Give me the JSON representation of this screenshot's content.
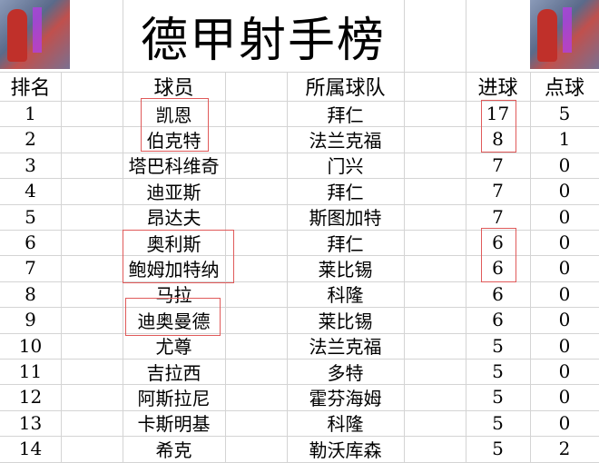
{
  "title": "德甲射手榜",
  "headers": {
    "rank": "排名",
    "player": "球员",
    "team": "所属球队",
    "goals": "进球",
    "penalties": "点球"
  },
  "rows": [
    {
      "rank": "1",
      "player": "凯恩",
      "team": "拜仁",
      "goals": "17",
      "penalties": "5"
    },
    {
      "rank": "2",
      "player": "伯克特",
      "team": "法兰克福",
      "goals": "8",
      "penalties": "1"
    },
    {
      "rank": "3",
      "player": "塔巴科维奇",
      "team": "门兴",
      "goals": "7",
      "penalties": "0"
    },
    {
      "rank": "4",
      "player": "迪亚斯",
      "team": "拜仁",
      "goals": "7",
      "penalties": "0"
    },
    {
      "rank": "5",
      "player": "昂达夫",
      "team": "斯图加特",
      "goals": "7",
      "penalties": "0"
    },
    {
      "rank": "6",
      "player": "奥利斯",
      "team": "拜仁",
      "goals": "6",
      "penalties": "0"
    },
    {
      "rank": "7",
      "player": "鲍姆加特纳",
      "team": "莱比锡",
      "goals": "6",
      "penalties": "0"
    },
    {
      "rank": "8",
      "player": "马拉",
      "team": "科隆",
      "goals": "6",
      "penalties": "0"
    },
    {
      "rank": "9",
      "player": "迪奥曼德",
      "team": "莱比锡",
      "goals": "6",
      "penalties": "0"
    },
    {
      "rank": "10",
      "player": "尤尊",
      "team": "法兰克福",
      "goals": "5",
      "penalties": "0"
    },
    {
      "rank": "11",
      "player": "吉拉西",
      "team": "多特",
      "goals": "5",
      "penalties": "0"
    },
    {
      "rank": "12",
      "player": "阿斯拉尼",
      "team": "霍芬海姆",
      "goals": "5",
      "penalties": "0"
    },
    {
      "rank": "13",
      "player": "卡斯明基",
      "team": "科隆",
      "goals": "5",
      "penalties": "0"
    },
    {
      "rank": "14",
      "player": "希克",
      "team": "勒沃库森",
      "goals": "5",
      "penalties": "2"
    }
  ],
  "highlight_color": "#e05a5a"
}
